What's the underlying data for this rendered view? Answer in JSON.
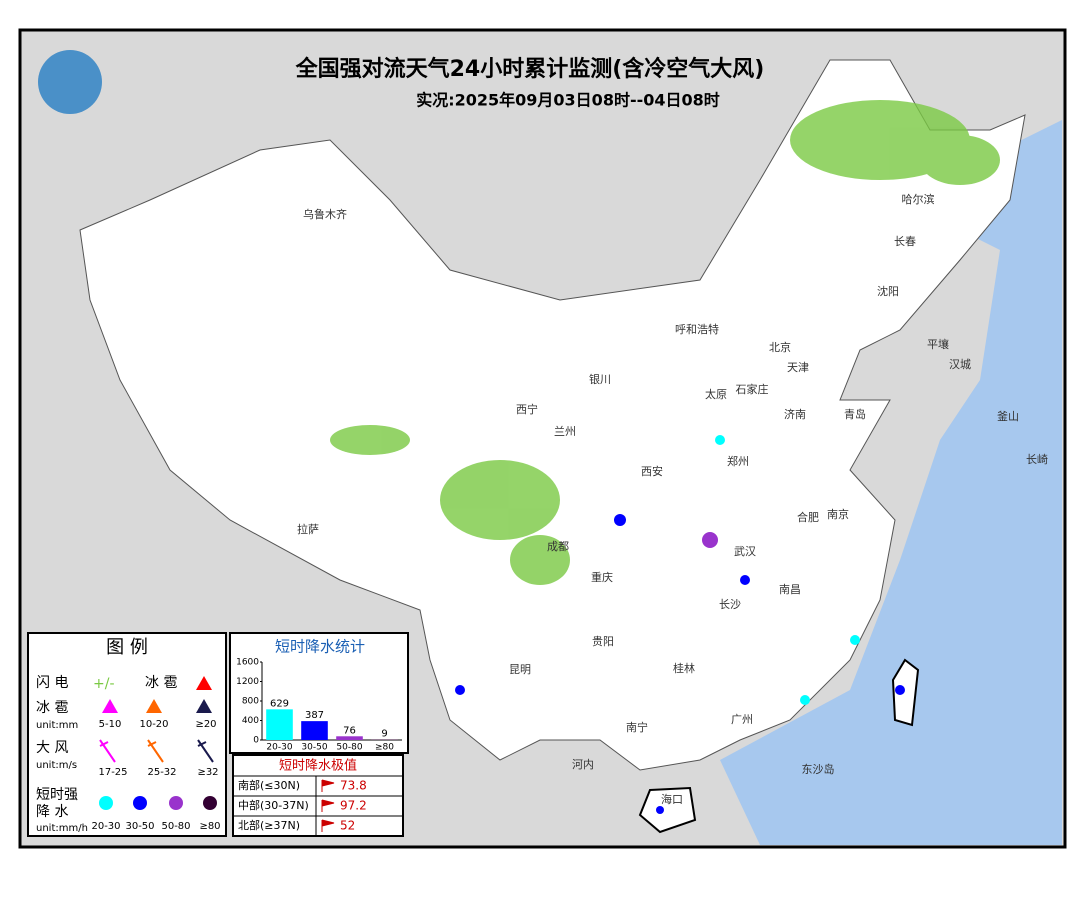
{
  "header": {
    "title": "全国强对流天气24小时累计监测(含冷空气大风)",
    "subtitle": "实况:2025年09月03日08时--04日08时"
  },
  "map": {
    "cities": [
      "乌鲁木齐",
      "哈尔滨",
      "长春",
      "沈阳",
      "呼和浩特",
      "北京",
      "天津",
      "太原",
      "石家庄",
      "济南",
      "青岛",
      "银川",
      "西宁",
      "兰州",
      "西安",
      "郑州",
      "合肥",
      "南京",
      "武汉",
      "成都",
      "重庆",
      "长沙",
      "南昌",
      "贵阳",
      "昆明",
      "桂林",
      "南宁",
      "广州",
      "海口",
      "拉萨",
      "平壤",
      "汉城",
      "釜山",
      "长崎",
      "河内",
      "东沙岛"
    ]
  },
  "legend": {
    "title": "图 例",
    "lightning": "闪 电",
    "hail_key": "冰 雹",
    "hail": {
      "label": "冰 雹",
      "unit": "unit:mm",
      "classes": [
        "5-10",
        "10-20",
        "≥20"
      ]
    },
    "wind": {
      "label": "大 风",
      "unit": "unit:m/s",
      "classes": [
        "17-25",
        "25-32",
        "≥32"
      ]
    },
    "rain": {
      "label": [
        "短时强",
        "降 水"
      ],
      "unit": "unit:mm/h",
      "classes": [
        "20-30",
        "30-50",
        "50-80",
        "≥80"
      ]
    }
  },
  "chart_data": {
    "type": "bar",
    "title": "短时降水统计",
    "categories": [
      "20-30",
      "30-50",
      "50-80",
      "≥80"
    ],
    "values": [
      629,
      387,
      76,
      9
    ],
    "colors": [
      "#00ffff",
      "#0000ff",
      "#9933cc",
      "#330033"
    ],
    "ylim": [
      0,
      1600
    ],
    "yticks": [
      0,
      400,
      800,
      1200,
      1600
    ]
  },
  "extremes": {
    "title": "短时降水极值",
    "rows": [
      [
        "南部(≤30N)",
        73.8
      ],
      [
        "中部(30-37N)",
        97.2
      ],
      [
        "北部(≥37N)",
        52
      ]
    ]
  }
}
